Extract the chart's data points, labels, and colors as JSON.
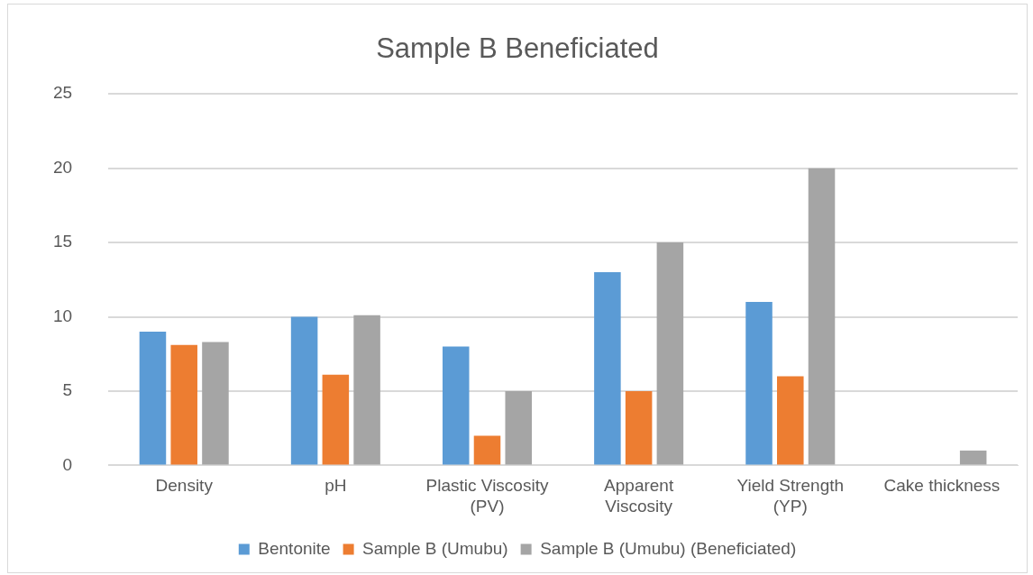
{
  "chart_data": {
    "type": "bar",
    "title": "Sample B Beneficiated",
    "categories": [
      "Density",
      "pH",
      "Plastic Viscosity (PV)",
      "Apparent Viscosity",
      "Yield Strength (YP)",
      "Cake thickness"
    ],
    "series": [
      {
        "name": "Bentonite",
        "color": "#5b9bd5",
        "values": [
          9,
          10,
          8,
          13,
          11,
          0
        ]
      },
      {
        "name": "Sample B (Umubu)",
        "color": "#ed7d31",
        "values": [
          8.1,
          6.1,
          2,
          5,
          6,
          0
        ]
      },
      {
        "name": "Sample B (Umubu) (Beneficiated)",
        "color": "#a5a5a5",
        "values": [
          8.3,
          10.1,
          5,
          15,
          20,
          1
        ]
      }
    ],
    "ylim": [
      0,
      25
    ],
    "yticks": [
      0,
      5,
      10,
      15,
      20,
      25
    ],
    "grid": "y",
    "legend": "bottom"
  }
}
